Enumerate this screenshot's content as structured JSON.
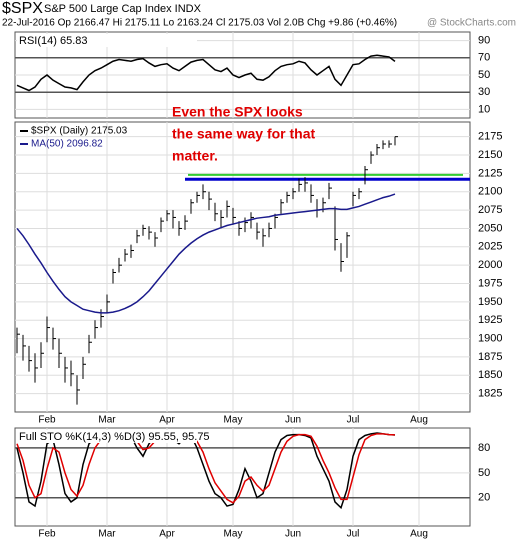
{
  "header": {
    "symbol": "$SPX",
    "name": "S&P 500 Large Cap Index INDX",
    "quote": "22-Jul-2016  Op 2166.47  Hi 2175.11  Lo 2163.24  Cl 2175.03  Vol 2.0B  Chg +9.86 (+0.46%)",
    "source": "@ StockCharts.com"
  },
  "chart_data": [
    {
      "type": "line",
      "title": "RSI(14) 65.83",
      "ylim": [
        0,
        100
      ],
      "yticks": [
        90,
        70,
        50,
        30,
        10
      ],
      "levels": [
        70,
        30
      ],
      "grid": true,
      "series": [
        {
          "color": "#000000",
          "values": [
            38,
            35,
            32,
            36,
            45,
            50,
            44,
            40,
            36,
            35,
            33,
            42,
            50,
            55,
            58,
            62,
            66,
            68,
            67,
            66,
            68,
            69,
            64,
            60,
            62,
            63,
            58,
            55,
            60,
            65,
            67,
            68,
            62,
            56,
            54,
            58,
            50,
            47,
            50,
            52,
            45,
            44,
            48,
            55,
            60,
            62,
            63,
            66,
            64,
            56,
            50,
            55,
            60,
            45,
            38,
            50,
            62,
            63,
            68,
            72,
            73,
            72,
            71,
            65.83,
            null,
            null,
            null,
            null
          ]
        }
      ]
    },
    {
      "type": "ohlc",
      "ylim": [
        1800,
        2195
      ],
      "yticks": [
        2175,
        2150,
        2125,
        2100,
        2075,
        2050,
        2025,
        2000,
        1975,
        1950,
        1925,
        1900,
        1875,
        1850,
        1825
      ],
      "grid": true,
      "categories": [
        null,
        null,
        null,
        null,
        null,
        "Feb",
        null,
        null,
        null,
        null,
        null,
        null,
        null,
        null,
        null,
        "Mar",
        null,
        null,
        null,
        null,
        null,
        null,
        null,
        null,
        null,
        "Apr",
        null,
        null,
        null,
        null,
        null,
        null,
        null,
        null,
        null,
        null,
        "May",
        null,
        null,
        null,
        null,
        null,
        null,
        null,
        null,
        null,
        "Jun",
        null,
        null,
        null,
        null,
        null,
        null,
        null,
        null,
        null,
        "Jul",
        null,
        null,
        null,
        null,
        null,
        null,
        null,
        null,
        null,
        null,
        "Aug"
      ],
      "series": [
        {
          "name": "$SPX (Daily) 2175.03",
          "color": "#000000",
          "values": [
            1906,
            1890,
            1870,
            1860,
            1880,
            1915,
            1900,
            1880,
            1860,
            1852,
            1830,
            1865,
            1895,
            1915,
            1930,
            1950,
            1990,
            2000,
            2015,
            2020,
            2040,
            2050,
            2045,
            2037,
            2060,
            2070,
            2065,
            2050,
            2060,
            2085,
            2095,
            2100,
            2090,
            2070,
            2065,
            2080,
            2065,
            2050,
            2058,
            2065,
            2045,
            2040,
            2050,
            2065,
            2085,
            2095,
            2100,
            2110,
            2112,
            2095,
            2075,
            2085,
            2105,
            2035,
            2005,
            2040,
            2095,
            2100,
            2130,
            2150,
            2160,
            2165,
            2165,
            2175.03,
            null,
            null,
            null,
            null
          ],
          "high": [
            1915,
            1905,
            1890,
            1880,
            1895,
            1930,
            1915,
            1900,
            1875,
            1870,
            1850,
            1875,
            1905,
            1925,
            1940,
            1960,
            1995,
            2010,
            2022,
            2028,
            2048,
            2055,
            2053,
            2045,
            2065,
            2075,
            2075,
            2060,
            2068,
            2090,
            2100,
            2110,
            2100,
            2085,
            2075,
            2088,
            2078,
            2060,
            2065,
            2072,
            2058,
            2050,
            2058,
            2070,
            2090,
            2100,
            2105,
            2118,
            2120,
            2110,
            2090,
            2092,
            2112,
            2080,
            2030,
            2045,
            2100,
            2105,
            2135,
            2155,
            2165,
            2170,
            2170,
            2175.11,
            null,
            null,
            null,
            null
          ],
          "low": [
            1880,
            1870,
            1855,
            1840,
            1860,
            1895,
            1885,
            1860,
            1840,
            1835,
            1810,
            1845,
            1880,
            1900,
            1915,
            1935,
            1975,
            1990,
            2005,
            2010,
            2030,
            2040,
            2035,
            2025,
            2045,
            2060,
            2050,
            2040,
            2048,
            2070,
            2085,
            2090,
            2075,
            2060,
            2050,
            2065,
            2055,
            2040,
            2045,
            2050,
            2035,
            2025,
            2038,
            2050,
            2070,
            2085,
            2090,
            2100,
            2100,
            2085,
            2065,
            2072,
            2090,
            2020,
            1991,
            2010,
            2080,
            2090,
            2110,
            2138,
            2150,
            2158,
            2160,
            2163.24,
            null,
            null,
            null,
            null
          ]
        },
        {
          "name": "MA(50) 2096.82",
          "color": "#1a1a8c",
          "values": [
            2050,
            2040,
            2028,
            2015,
            2003,
            1990,
            1978,
            1967,
            1957,
            1950,
            1945,
            1940,
            1938,
            1936,
            1935,
            1935,
            1936,
            1938,
            1941,
            1945,
            1950,
            1957,
            1965,
            1975,
            1985,
            1995,
            2005,
            2015,
            2023,
            2030,
            2036,
            2041,
            2045,
            2048,
            2051,
            2054,
            2056,
            2058,
            2060,
            2062,
            2064,
            2065,
            2066,
            2068,
            2069,
            2070,
            2071,
            2072,
            2073,
            2074,
            2075,
            2076,
            2077,
            2077,
            2076,
            2076,
            2078,
            2080,
            2083,
            2086,
            2089,
            2092,
            2094,
            2096.82,
            null,
            null,
            null,
            null
          ]
        }
      ],
      "levels": [
        {
          "value": 2123,
          "color": "#33cc33"
        },
        {
          "value": 2117,
          "color": "#0000cc"
        }
      ],
      "annotation": {
        "color": "#e00000",
        "lines": [
          "Even the SPX looks",
          "the same way for that",
          "matter."
        ]
      }
    },
    {
      "type": "line",
      "title": "Full STO %K(14,3) %D(3) 95.55, 95.75",
      "ylim": [
        -14,
        104
      ],
      "yticks": [
        80,
        50,
        20
      ],
      "levels": [
        80,
        20
      ],
      "grid": true,
      "series": [
        {
          "color": "#000000",
          "values": [
            80,
            50,
            15,
            10,
            40,
            85,
            90,
            60,
            25,
            15,
            20,
            60,
            85,
            92,
            95,
            96,
            97,
            95,
            96,
            94,
            80,
            70,
            85,
            93,
            95,
            96,
            90,
            85,
            92,
            95,
            80,
            60,
            40,
            25,
            20,
            10,
            12,
            30,
            55,
            40,
            20,
            25,
            50,
            75,
            90,
            95,
            96,
            96,
            95,
            92,
            70,
            55,
            40,
            15,
            8,
            30,
            70,
            90,
            95,
            97,
            98,
            97,
            96,
            95.55,
            null,
            null,
            null,
            null
          ]
        },
        {
          "color": "#e00000",
          "values": [
            85,
            65,
            35,
            20,
            25,
            55,
            80,
            75,
            50,
            30,
            22,
            35,
            60,
            80,
            90,
            94,
            96,
            96,
            95,
            95,
            88,
            78,
            80,
            88,
            93,
            95,
            93,
            88,
            89,
            92,
            88,
            75,
            55,
            38,
            28,
            18,
            14,
            22,
            40,
            45,
            35,
            28,
            35,
            55,
            75,
            88,
            94,
            96,
            96,
            94,
            82,
            65,
            50,
            32,
            18,
            18,
            45,
            72,
            90,
            95,
            97,
            97,
            96,
            95.75,
            null,
            null,
            null,
            null
          ]
        }
      ]
    }
  ]
}
